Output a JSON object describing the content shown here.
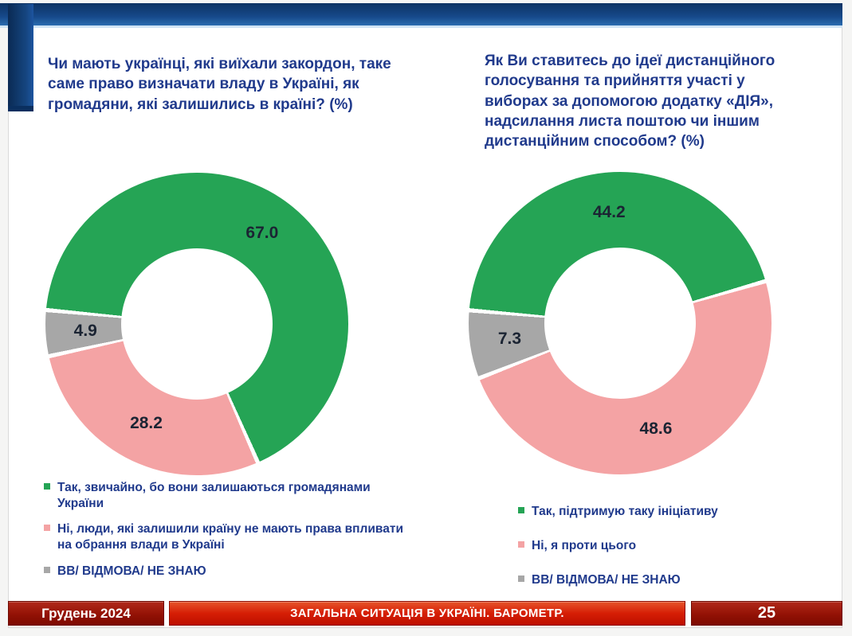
{
  "page": {
    "accent_blue": "#123c72",
    "band_blue_dark": "#0d3263",
    "band_blue_light": "#2b6cb0",
    "value_label_color": "#1b2433",
    "title_text_color": "#203a8c"
  },
  "chart_data": [
    {
      "type": "pie",
      "subtype": "donut",
      "title": "Чи мають українці, які виїхали закордон, таке саме право визначати владу в Україні, як громадяни, які залишились в країні? (%)",
      "categories": [
        "Так, звичайно, бо вони залишаються громадянами України",
        "Ні, люди, які залишили країну не мають права впливати на обрання влади в Україні",
        "ВВ/ ВІДМОВА/ НЕ ЗНАЮ"
      ],
      "values": [
        67.0,
        28.2,
        4.9
      ],
      "labels": [
        "67.0",
        "28.2",
        "4.9"
      ],
      "slice_colors": [
        "#25a455",
        "#f4a3a4",
        "#a7a7a7"
      ],
      "start_angle_deg": 275.3,
      "legend_position": "bottom"
    },
    {
      "type": "pie",
      "subtype": "donut",
      "title": "Як Ви ставитесь до ідеї дистанційного голосування та прийняття участі у виборах за допомогою додатку «ДІЯ», надсилання листа поштою чи іншим дистанційним способом? (%)",
      "categories": [
        "Так, підтримую таку ініціативу",
        "Ні, я проти цього",
        "ВВ/ ВІДМОВА/ НЕ ЗНАЮ"
      ],
      "values": [
        44.2,
        48.6,
        7.3
      ],
      "labels": [
        "44.2",
        "48.6",
        "7.3"
      ],
      "slice_colors": [
        "#25a455",
        "#f4a3a4",
        "#a7a7a7"
      ],
      "start_angle_deg": 274.9,
      "legend_position": "bottom"
    }
  ],
  "footer": {
    "date": "Грудень 2024",
    "title": "ЗАГАЛЬНА СИТУАЦІЯ В УКРАЇНІ. БАРОМЕТР.",
    "page_number": "25",
    "red_bright": "#d61e05",
    "red_dark": "#8a0f03"
  }
}
